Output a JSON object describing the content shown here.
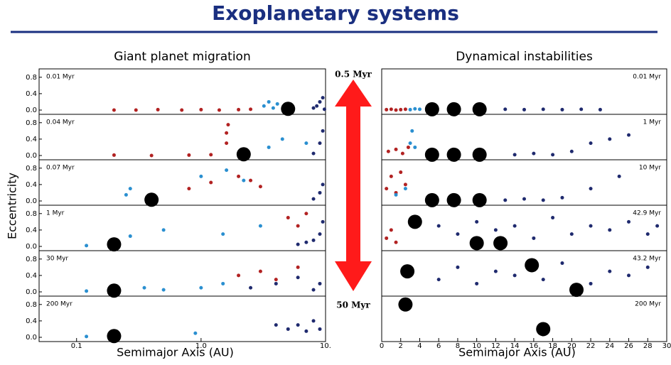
{
  "title": "Exoplanetary systems",
  "arrow": {
    "top": "0.5 Myr",
    "bottom": "50 Myr",
    "color": "#ff1a1a"
  },
  "chart_data": [
    {
      "type": "scatter",
      "title": "Giant planet migration",
      "xlabel": "Semimajor Axis (AU)",
      "ylabel": "Eccentricity",
      "log_x": true,
      "xlim": [
        0.05,
        10
      ],
      "xticks": [
        0.1,
        {
          "value": 1,
          "label": "1.0"
        },
        {
          "value": 10,
          "label": "10."
        }
      ],
      "ylim": [
        0,
        0.9
      ],
      "yticks": [
        {
          "value": 0,
          "label": "0.0"
        },
        0.4,
        0.8
      ],
      "label_side": "left",
      "panels": [
        {
          "label": "0.01 Myr",
          "planets": {
            "x": [
              5
            ],
            "y": [
              0.03
            ]
          },
          "particles": [
            {
              "color": "#b22222",
              "x": [
                0.2,
                0.3,
                0.45,
                0.7,
                1,
                1.4,
                2,
                2.5
              ],
              "y": [
                0,
                0,
                0.01,
                0,
                0.01,
                0,
                0.01,
                0.02
              ]
            },
            {
              "color": "#2a8fd0",
              "x": [
                3.2,
                3.5,
                3.8,
                4.1
              ],
              "y": [
                0.1,
                0.2,
                0.05,
                0.15
              ]
            },
            {
              "color": "#1f2a6e",
              "x": [
                8,
                8.5,
                9,
                9.5,
                9.8
              ],
              "y": [
                0.05,
                0.1,
                0.2,
                0.3,
                0.02
              ]
            }
          ]
        },
        {
          "label": "0.04 Myr",
          "planets": {
            "x": [
              2.2
            ],
            "y": [
              0.03
            ]
          },
          "particles": [
            {
              "color": "#b22222",
              "x": [
                0.2,
                0.4,
                0.8,
                1.2,
                1.6,
                1.6,
                1.65
              ],
              "y": [
                0.01,
                0,
                0.01,
                0.02,
                0.3,
                0.55,
                0.75
              ]
            },
            {
              "color": "#2a8fd0",
              "x": [
                3.5,
                4.5,
                7
              ],
              "y": [
                0.2,
                0.4,
                0.3
              ]
            },
            {
              "color": "#1f2a6e",
              "x": [
                8,
                9,
                9.5
              ],
              "y": [
                0.05,
                0.3,
                0.6
              ]
            }
          ]
        },
        {
          "label": "0.07 Myr",
          "planets": {
            "x": [
              0.4
            ],
            "y": [
              0.03
            ]
          },
          "particles": [
            {
              "color": "#b22222",
              "x": [
                0.8,
                1.2,
                2,
                2.5,
                3
              ],
              "y": [
                0.3,
                0.45,
                0.6,
                0.5,
                0.35
              ]
            },
            {
              "color": "#2a8fd0",
              "x": [
                0.25,
                0.27,
                1,
                1.6,
                2.2
              ],
              "y": [
                0.15,
                0.3,
                0.6,
                0.75,
                0.5
              ]
            },
            {
              "color": "#1f2a6e",
              "x": [
                8,
                9,
                9.5
              ],
              "y": [
                0.05,
                0.2,
                0.4
              ]
            }
          ]
        },
        {
          "label": "1 Myr",
          "planets": {
            "x": [
              0.2
            ],
            "y": [
              0.05
            ]
          },
          "particles": [
            {
              "color": "#2a8fd0",
              "x": [
                0.12,
                0.27,
                0.5,
                1.5,
                3
              ],
              "y": [
                0.02,
                0.25,
                0.4,
                0.3,
                0.5
              ]
            },
            {
              "color": "#b22222",
              "x": [
                5,
                6,
                7
              ],
              "y": [
                0.7,
                0.5,
                0.8
              ]
            },
            {
              "color": "#1f2a6e",
              "x": [
                6,
                7,
                8,
                9,
                9.5
              ],
              "y": [
                0.05,
                0.1,
                0.15,
                0.3,
                0.6
              ]
            }
          ]
        },
        {
          "label": "30 Myr",
          "planets": {
            "x": [
              0.2
            ],
            "y": [
              0.03
            ]
          },
          "particles": [
            {
              "color": "#2a8fd0",
              "x": [
                0.12,
                0.35,
                0.5,
                1,
                1.5
              ],
              "y": [
                0.02,
                0.1,
                0.05,
                0.1,
                0.2
              ]
            },
            {
              "color": "#b22222",
              "x": [
                2,
                3,
                4,
                6
              ],
              "y": [
                0.4,
                0.5,
                0.3,
                0.6
              ]
            },
            {
              "color": "#1f2a6e",
              "x": [
                2.5,
                4,
                6,
                8,
                9
              ],
              "y": [
                0.1,
                0.2,
                0.35,
                0.05,
                0.2
              ]
            }
          ]
        },
        {
          "label": "200 Myr",
          "planets": {
            "x": [
              0.2
            ],
            "y": [
              0.03
            ]
          },
          "particles": [
            {
              "color": "#2a8fd0",
              "x": [
                0.12,
                0.9
              ],
              "y": [
                0.02,
                0.1
              ]
            },
            {
              "color": "#1f2a6e",
              "x": [
                4,
                5,
                6,
                7,
                8,
                9
              ],
              "y": [
                0.3,
                0.2,
                0.3,
                0.15,
                0.4,
                0.2
              ]
            }
          ]
        }
      ]
    },
    {
      "type": "scatter",
      "title": "Dynamical instabilities",
      "xlabel": "Semimajor Axis (AU)",
      "log_x": false,
      "xlim": [
        0,
        30
      ],
      "xticks": [
        0,
        2,
        4,
        6,
        8,
        10,
        12,
        14,
        16,
        18,
        20,
        22,
        24,
        26,
        28,
        30
      ],
      "ylim": [
        0,
        0.9
      ],
      "label_side": "right",
      "panels": [
        {
          "label": "0.01 Myr",
          "planets": {
            "x": [
              5.3,
              7.6,
              10.3
            ],
            "y": [
              0.02,
              0.02,
              0.02
            ]
          },
          "particles": [
            {
              "color": "#b22222",
              "x": [
                0.5,
                1,
                1.5,
                2,
                2.5
              ],
              "y": [
                0.01,
                0.02,
                0,
                0.01,
                0.02
              ]
            },
            {
              "color": "#2a8fd0",
              "x": [
                3,
                3.5,
                4
              ],
              "y": [
                0.01,
                0.03,
                0.02
              ]
            },
            {
              "color": "#1f2a6e",
              "x": [
                13,
                15,
                17,
                19,
                21,
                23
              ],
              "y": [
                0.02,
                0.01,
                0.02,
                0.01,
                0.02,
                0.01
              ]
            }
          ]
        },
        {
          "label": "1 Myr",
          "planets": {
            "x": [
              5.3,
              7.6,
              10.3
            ],
            "y": [
              0.02,
              0.02,
              0.02
            ]
          },
          "particles": [
            {
              "color": "#b22222",
              "x": [
                0.7,
                1.5,
                2.2,
                2.8
              ],
              "y": [
                0.1,
                0.15,
                0.05,
                0.2
              ]
            },
            {
              "color": "#2a8fd0",
              "x": [
                3,
                3.2,
                3.5
              ],
              "y": [
                0.3,
                0.6,
                0.2
              ]
            },
            {
              "color": "#1f2a6e",
              "x": [
                14,
                16,
                18,
                20,
                22,
                24,
                26
              ],
              "y": [
                0.02,
                0.05,
                0.02,
                0.1,
                0.3,
                0.4,
                0.5
              ]
            }
          ]
        },
        {
          "label": "10 Myr",
          "planets": {
            "x": [
              5.3,
              7.6,
              10.3
            ],
            "y": [
              0.02,
              0.02,
              0.02
            ]
          },
          "particles": [
            {
              "color": "#b22222",
              "x": [
                0.5,
                1,
                1.5,
                2,
                2.5
              ],
              "y": [
                0.3,
                0.6,
                0.2,
                0.7,
                0.4
              ]
            },
            {
              "color": "#2a8fd0",
              "x": [
                1.5,
                2.5
              ],
              "y": [
                0.15,
                0.3
              ]
            },
            {
              "color": "#1f2a6e",
              "x": [
                13,
                15,
                17,
                19,
                22,
                25
              ],
              "y": [
                0.02,
                0.05,
                0.02,
                0.08,
                0.3,
                0.6
              ]
            }
          ]
        },
        {
          "label": "42.9 Myr",
          "planets": {
            "x": [
              3.5,
              10,
              12.5
            ],
            "y": [
              0.6,
              0.08,
              0.08
            ]
          },
          "particles": [
            {
              "color": "#b22222",
              "x": [
                0.5,
                1,
                1.5
              ],
              "y": [
                0.2,
                0.4,
                0.1
              ]
            },
            {
              "color": "#1f2a6e",
              "x": [
                6,
                8,
                10,
                12,
                14,
                16,
                18,
                20,
                22,
                24,
                26,
                28,
                29
              ],
              "y": [
                0.5,
                0.3,
                0.6,
                0.4,
                0.5,
                0.2,
                0.7,
                0.3,
                0.5,
                0.4,
                0.6,
                0.3,
                0.5
              ]
            }
          ]
        },
        {
          "label": "43.2 Myr",
          "planets": {
            "x": [
              2.7,
              15.8,
              20.5
            ],
            "y": [
              0.5,
              0.65,
              0.05
            ]
          },
          "particles": [
            {
              "color": "#1f2a6e",
              "x": [
                6,
                8,
                10,
                12,
                14,
                17,
                19,
                22,
                24,
                26,
                28
              ],
              "y": [
                0.3,
                0.6,
                0.2,
                0.5,
                0.4,
                0.3,
                0.7,
                0.2,
                0.5,
                0.4,
                0.6
              ]
            }
          ]
        },
        {
          "label": "200 Myr",
          "planets": {
            "x": [
              2.5,
              17
            ],
            "y": [
              0.8,
              0.2
            ]
          },
          "particles": []
        }
      ]
    }
  ]
}
